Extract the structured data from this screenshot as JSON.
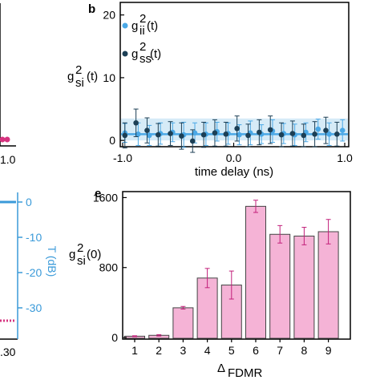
{
  "colors": {
    "idler": "#4aa8e6",
    "signal_idler_dark": "#1c3f55",
    "band": "#d6ebf7",
    "pink_fill": "#f5b3d6",
    "pink_edge": "#c21f7a",
    "pink_dot": "#d6337f",
    "blue_axis": "#3a9ad9"
  },
  "panel_b": {
    "letter": "b",
    "ylabel_main": "g",
    "ylabel_sup": "2",
    "ylabel_sub": "si",
    "ylabel_tail": "(t)",
    "xlabel": "time delay (ns)",
    "legend": [
      {
        "main": "g",
        "sup": "2",
        "sub": "ii",
        "tail": "(t)"
      },
      {
        "main": "g",
        "sup": "2",
        "sub": "ss",
        "tail": "(t)"
      }
    ],
    "yticks": [
      "0",
      "10",
      "20"
    ],
    "xticks": [
      "-1.0",
      "0.0",
      "1.0"
    ]
  },
  "panel_e": {
    "letter": "e",
    "ylabel_main": "g",
    "ylabel_sup": "2",
    "ylabel_sub": "si",
    "ylabel_tail": "(0)",
    "xlabel_main": "Δ",
    "xlabel_sub": "FDMR",
    "yticks": [
      "0",
      "800",
      "1600"
    ],
    "xticks": [
      "1",
      "2",
      "3",
      "4",
      "5",
      "6",
      "7",
      "8",
      "9"
    ]
  },
  "left_panels": {
    "top_xtick": "1.0",
    "bottom_xtick": ".30",
    "right_axis_label": "T (dB)",
    "right_yticks": [
      "0",
      "-10",
      "-20",
      "-30"
    ]
  },
  "chart_data": [
    {
      "type": "scatter",
      "panel": "b",
      "xlim": [
        -1.0,
        1.0
      ],
      "ylim": [
        -1,
        22
      ],
      "series": [
        {
          "name": "g2ii(t)",
          "x": [
            -0.98,
            -0.86,
            -0.76,
            -0.66,
            -0.55,
            -0.45,
            -0.35,
            -0.25,
            -0.15,
            -0.05,
            0.05,
            0.15,
            0.25,
            0.35,
            0.45,
            0.55,
            0.65,
            0.76,
            0.86,
            0.98
          ],
          "y": [
            1.2,
            1.0,
            0.8,
            1.1,
            1.3,
            0.9,
            1.2,
            1.0,
            1.4,
            1.1,
            0.9,
            1.2,
            1.0,
            1.5,
            1.1,
            0.9,
            1.3,
            1.8,
            1.0,
            1.6
          ],
          "err": [
            1.5,
            1.8,
            1.6,
            1.7,
            1.5,
            2.0,
            1.6,
            1.8,
            1.5,
            1.7,
            1.6,
            1.9,
            1.5,
            1.8,
            1.6,
            1.7,
            1.5,
            1.6,
            1.8,
            1.7
          ]
        },
        {
          "name": "g2ss(t)",
          "x": [
            -0.98,
            -0.88,
            -0.78,
            -0.68,
            -0.57,
            -0.47,
            -0.37,
            -0.27,
            -0.17,
            -0.07,
            0.03,
            0.13,
            0.23,
            0.33,
            0.43,
            0.53,
            0.63,
            0.73,
            0.83,
            0.93
          ],
          "y": [
            0.8,
            2.8,
            1.6,
            0.9,
            1.1,
            0.7,
            -0.1,
            0.9,
            1.2,
            1.0,
            1.9,
            0.8,
            1.3,
            1.7,
            0.9,
            1.1,
            0.8,
            1.0,
            1.6,
            1.0
          ],
          "err": [
            2.0,
            2.2,
            2.0,
            1.8,
            1.9,
            2.1,
            1.8,
            2.0,
            2.1,
            1.9,
            2.0,
            1.8,
            2.0,
            2.2,
            1.9,
            2.0,
            1.8,
            2.0,
            2.1,
            1.9
          ]
        }
      ],
      "band_y": [
        0.0,
        3.5
      ],
      "fit_y": 1.0
    },
    {
      "type": "bar",
      "panel": "e",
      "categories": [
        "1",
        "2",
        "3",
        "4",
        "5",
        "6",
        "7",
        "8",
        "9"
      ],
      "values": [
        15,
        25,
        340,
        680,
        600,
        1500,
        1180,
        1160,
        1210
      ],
      "errors": [
        5,
        8,
        15,
        110,
        160,
        70,
        100,
        100,
        140
      ],
      "ylim": [
        0,
        1650
      ]
    }
  ]
}
